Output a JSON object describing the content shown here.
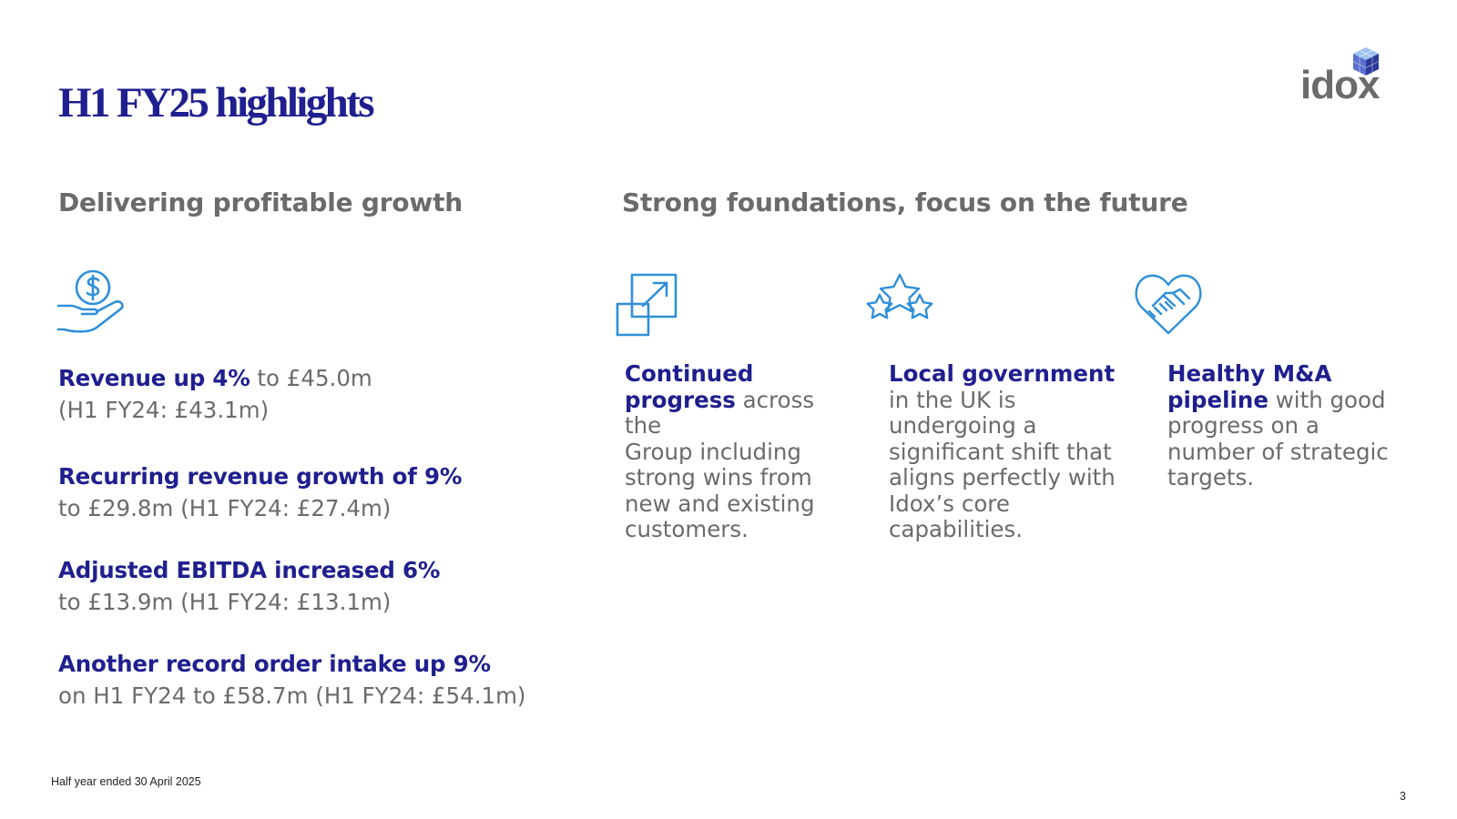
{
  "slide": {
    "title": "H1 FY25 highlights",
    "logo_text": "idox",
    "page_number": "3",
    "footnote": "Half year ended 30 April 2025"
  },
  "left": {
    "heading": "Delivering profitable growth",
    "icon": "hand-with-dollar-coin-icon",
    "kpis": [
      {
        "strong": "Revenue up 4%",
        "rest": " to £45.0m",
        "line2": "(H1 FY24: £43.1m)"
      },
      {
        "strong": "Recurring revenue growth of 9%",
        "line2": "to £29.8m (H1 FY24: £27.4m)"
      },
      {
        "strong": "Adjusted EBITDA increased 6%",
        "line2": "to £13.9m (H1 FY24: £13.1m)"
      },
      {
        "strong": "Another record order intake up 9%",
        "line2": "on H1 FY24 to £58.7m (H1 FY24: £54.1m)"
      }
    ]
  },
  "right": {
    "heading": "Strong foundations, focus on the future",
    "columns": [
      {
        "icon": "expand-arrow-icon",
        "lines": [
          {
            "strong": "Continued"
          },
          {
            "strong": "progress",
            "rest": " across the"
          },
          {
            "rest": "Group including"
          },
          {
            "rest": "strong wins from"
          },
          {
            "rest": "new and existing"
          },
          {
            "rest": "customers."
          }
        ]
      },
      {
        "icon": "stars-icon",
        "lines": [
          {
            "strong": "Local government"
          },
          {
            "rest": "in the UK is"
          },
          {
            "rest": "undergoing a"
          },
          {
            "rest": "significant shift that"
          },
          {
            "rest": "aligns perfectly with"
          },
          {
            "rest": "Idox’s core"
          },
          {
            "rest": "capabilities."
          }
        ]
      },
      {
        "icon": "handshake-heart-icon",
        "lines": [
          {
            "strong": "Healthy M&A"
          },
          {
            "strong": "pipeline",
            "rest": " with good"
          },
          {
            "rest": "progress on a"
          },
          {
            "rest": "number of strategic"
          },
          {
            "rest": "targets."
          }
        ]
      }
    ]
  },
  "colors": {
    "navy": "#1f1f8f",
    "grey": "#6b6b6b",
    "icon_blue": "#2f8fd8"
  }
}
